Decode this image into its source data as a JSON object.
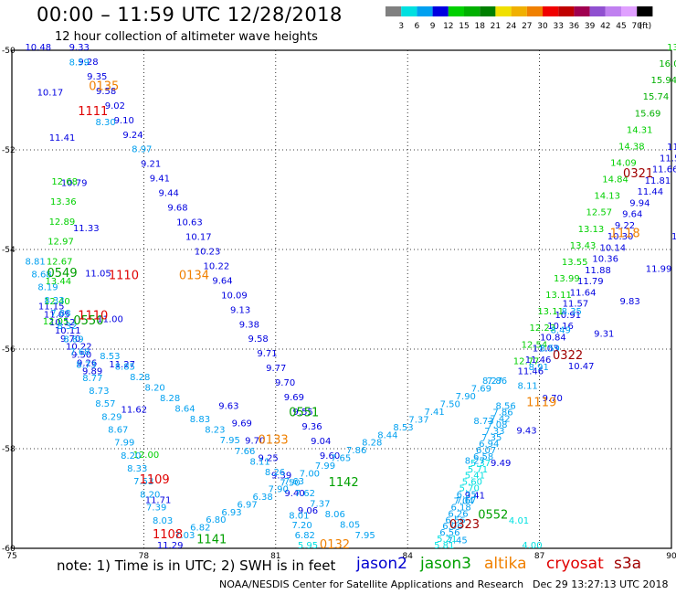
{
  "header": {
    "title": "00:00 – 11:59 UTC 12/28/2018",
    "subtitle": "12 hour collection of altimeter wave heights"
  },
  "color_scale": {
    "ticks": [
      "3",
      "6",
      "9",
      "12",
      "15",
      "18",
      "21",
      "24",
      "27",
      "30",
      "33",
      "36",
      "39",
      "42",
      "45",
      "70"
    ],
    "unit": "(ft)",
    "colors": [
      "#808080",
      "#00e0e0",
      "#00a0f0",
      "#0000e0",
      "#00d000",
      "#00b000",
      "#008000",
      "#f0e000",
      "#f0b000",
      "#f08000",
      "#f00000",
      "#c00000",
      "#a00050",
      "#9050d0",
      "#c080f0",
      "#e0a0ff",
      "#000000"
    ]
  },
  "footer": {
    "note": "note:  1) Time is in UTC;  2) SWH is in feet",
    "credit": "NOAA/NESDIS Center for Satellite Applications and Research",
    "stamp": "Dec 29  13:27:13 UTC 2018",
    "satellites": [
      {
        "name": "jason2",
        "color": "#0000d0"
      },
      {
        "name": "jason3",
        "color": "#00a000"
      },
      {
        "name": "altika",
        "color": "#f08000"
      },
      {
        "name": "cryosat",
        "color": "#e00000"
      },
      {
        "name": "s3a",
        "color": "#a00000"
      }
    ]
  },
  "chart_data": {
    "type": "scatter",
    "xlim": [
      75,
      90
    ],
    "ylim": [
      -60,
      -50
    ],
    "x_ticks": [
      "75",
      "78",
      "81",
      "84",
      "87",
      "90"
    ],
    "y_ticks": [
      "-50",
      "-52",
      "-54",
      "-56",
      "-58",
      "-60"
    ],
    "grid": true,
    "tracks": [
      {
        "satellite": "jason2",
        "start": [
          75.3,
          -50.0
        ],
        "end": [
          78.3,
          -60.0
        ],
        "values": [
          "10.48",
          "10.17",
          "11.41",
          "10.79",
          "11.33",
          "11.05",
          "11.00",
          "11.27",
          "11.62",
          "12.00",
          "11.71",
          "11.29"
        ]
      },
      {
        "satellite": "jason2",
        "start": [
          75.6,
          -55.2
        ],
        "end": [
          76.6,
          -56.5
        ],
        "values": [
          "11.15",
          "11.05",
          "10.12",
          "10.11",
          "9.70",
          "10.22",
          "9.50",
          "9.26",
          "9.89"
        ]
      },
      {
        "satellite": "jason2",
        "start": [
          76.3,
          -50.0
        ],
        "end": [
          82.0,
          -58.2
        ],
        "values": [
          "9.33",
          "9.28",
          "9.35",
          "9.58",
          "9.02",
          "9.10",
          "9.24",
          "8.97",
          "9.21",
          "9.41",
          "9.44",
          "9.68",
          "10.63",
          "10.17",
          "10.23",
          "10.22",
          "9.64",
          "10.09",
          "9.13",
          "9.38",
          "9.58",
          "9.71",
          "9.77",
          "9.70",
          "9.69",
          "9.55",
          "9.36",
          "9.04",
          "9.60"
        ]
      },
      {
        "satellite": "jason2",
        "start": [
          79.7,
          -57.2
        ],
        "end": [
          81.5,
          -59.3
        ],
        "values": [
          "9.63",
          "9.69",
          "9.70",
          "9.25",
          "9.39",
          "9.40",
          "9.06"
        ]
      },
      {
        "satellite": "jason2",
        "start": [
          89.9,
          -52.0
        ],
        "end": [
          86.5,
          -56.5
        ],
        "values": [
          "11.52",
          "11.52",
          "11.66",
          "11.81",
          "11.44",
          "9.94",
          "9.64",
          "9.22",
          "10.30",
          "10.14",
          "10.36",
          "11.88",
          "11.79",
          "11.64",
          "11.57",
          "10.91",
          "10.16",
          "10.84",
          "11.03",
          "11.46",
          "11.46"
        ]
      },
      {
        "satellite": "jason2",
        "start": [
          90.0,
          -53.8
        ],
        "end": [
          85.3,
          -59.0
        ],
        "values": [
          "11.07",
          "11.99",
          "9.83",
          "9.31",
          "10.47",
          "9.70",
          "9.43",
          "9.49",
          "9.41"
        ]
      },
      {
        "satellite": "jason3",
        "start": [
          75.9,
          -52.7
        ],
        "end": [
          75.7,
          -55.5
        ],
        "values": [
          "12.68",
          "13.36",
          "12.89",
          "12.97",
          "12.67",
          "13.44",
          "12.40",
          "12.05"
        ]
      },
      {
        "satellite": "jason3",
        "start": [
          89.9,
          -50.0
        ],
        "end": [
          86.4,
          -56.3
        ],
        "values": [
          "13.36",
          "16.05",
          "15.94",
          "15.74",
          "15.69",
          "14.31",
          "14.38",
          "14.09",
          "14.84",
          "14.13",
          "12.57",
          "13.13",
          "13.43",
          "13.55",
          "13.99",
          "13.11",
          "13.11",
          "12.23",
          "12.54",
          "12.77"
        ]
      },
      {
        "satellite": "altika",
        "start": [
          75.3,
          -54.3
        ],
        "end": [
          78.2,
          -59.5
        ],
        "values": [
          "8.81",
          "8.68",
          "8.19",
          "8.33",
          "7.88",
          "8.32",
          "8.89",
          "7.68",
          "8.73",
          "8.77",
          "8.73",
          "8.57",
          "8.29",
          "8.67",
          "7.99",
          "8.20",
          "8.33",
          "7.53",
          "8.20",
          "7.39",
          "8.03"
        ]
      },
      {
        "satellite": "altika",
        "start": [
          76.3,
          -50.3
        ],
        "end": [
          76.9,
          -51.5
        ],
        "values": [
          "8.59",
          "8.30"
        ]
      },
      {
        "satellite": "altika",
        "start": [
          77.0,
          -56.2
        ],
        "end": [
          82.8,
          -59.8
        ],
        "values": [
          "8.53",
          "8.85",
          "8.28",
          "8.20",
          "8.28",
          "8.64",
          "8.83",
          "8.23",
          "7.95",
          "7.66",
          "8.11",
          "8.26",
          "7.50",
          "7.62",
          "7.37",
          "8.06",
          "8.05",
          "7.95"
        ]
      },
      {
        "satellite": "altika",
        "start": [
          78.7,
          -59.8
        ],
        "end": [
          85.8,
          -56.7
        ],
        "values": [
          "7.03",
          "6.82",
          "6.80",
          "6.93",
          "6.97",
          "6.38",
          "7.90",
          "7.63",
          "7.00",
          "7.99",
          "7.65",
          "7.86",
          "8.28",
          "8.44",
          "8.53",
          "7.37",
          "7.41",
          "7.50",
          "7.90",
          "7.69",
          "7.86"
        ]
      },
      {
        "satellite": "altika",
        "start": [
          81.3,
          -59.4
        ],
        "end": [
          81.5,
          -60.0
        ],
        "values": [
          "8.01",
          "7.20",
          "6.82",
          "5.95"
        ]
      },
      {
        "satellite": "altika",
        "start": [
          87.5,
          -55.3
        ],
        "end": [
          86.5,
          -56.8
        ],
        "values": [
          "8.35",
          "8.49",
          "8.59",
          "8.91",
          "8.11"
        ]
      },
      {
        "satellite": "altika",
        "start": [
          86.0,
          -57.2
        ],
        "end": [
          84.6,
          -60.0
        ],
        "values": [
          "8.56",
          "7.86",
          "7.42",
          "7.08",
          "7.33",
          "7.35",
          "6.94",
          "6.07",
          "6.58",
          "5.37",
          "5.71",
          "5.41",
          "5.60",
          "5.70",
          "6.25",
          "7.04",
          "6.18",
          "6.26",
          "6.56",
          "6.06",
          "6.56",
          "5.21",
          "5.81"
        ]
      },
      {
        "satellite": "altika",
        "start": [
          85.7,
          -56.7
        ],
        "end": [
          84.9,
          -59.9
        ],
        "values": [
          "8.27",
          "8.73",
          "8.27",
          "7.67",
          "7.45"
        ]
      },
      {
        "satellite": "altika",
        "start": [
          86.3,
          -59.5
        ],
        "end": [
          86.6,
          -60.0
        ],
        "values": [
          "4.01",
          "4.00"
        ]
      }
    ],
    "time_labels": [
      {
        "text": "0135",
        "satellite": "altika",
        "lon": 76.75,
        "lat": -50.8
      },
      {
        "text": "1111",
        "satellite": "cryosat",
        "lon": 76.5,
        "lat": -51.3
      },
      {
        "text": "0549",
        "satellite": "jason3",
        "lon": 75.8,
        "lat": -54.55
      },
      {
        "text": "1110",
        "satellite": "cryosat",
        "lon": 77.2,
        "lat": -54.6
      },
      {
        "text": "0134",
        "satellite": "altika",
        "lon": 78.8,
        "lat": -54.6
      },
      {
        "text": "0550",
        "satellite": "jason3",
        "lon": 76.4,
        "lat": -55.5
      },
      {
        "text": "1110",
        "satellite": "cryosat",
        "lon": 76.5,
        "lat": -55.4
      },
      {
        "text": "0551",
        "satellite": "jason3",
        "lon": 81.3,
        "lat": -57.35
      },
      {
        "text": "0133",
        "satellite": "altika",
        "lon": 80.6,
        "lat": -57.9
      },
      {
        "text": "1142",
        "satellite": "jason3",
        "lon": 82.2,
        "lat": -58.75
      },
      {
        "text": "1109",
        "satellite": "cryosat",
        "lon": 77.9,
        "lat": -58.7
      },
      {
        "text": "1108",
        "satellite": "cryosat",
        "lon": 78.2,
        "lat": -59.8
      },
      {
        "text": "1141",
        "satellite": "jason3",
        "lon": 79.2,
        "lat": -59.9
      },
      {
        "text": "0132",
        "satellite": "altika",
        "lon": 82.0,
        "lat": -60.0
      },
      {
        "text": "0552",
        "satellite": "jason3",
        "lon": 85.6,
        "lat": -59.4
      },
      {
        "text": "0323",
        "satellite": "s3a",
        "lon": 84.95,
        "lat": -59.6
      },
      {
        "text": "1119",
        "satellite": "altika",
        "lon": 86.7,
        "lat": -57.15
      },
      {
        "text": "0322",
        "satellite": "s3a",
        "lon": 87.3,
        "lat": -56.2
      },
      {
        "text": "1118",
        "satellite": "altika",
        "lon": 88.6,
        "lat": -53.75
      },
      {
        "text": "0321",
        "satellite": "s3a",
        "lon": 88.9,
        "lat": -52.55
      }
    ]
  }
}
